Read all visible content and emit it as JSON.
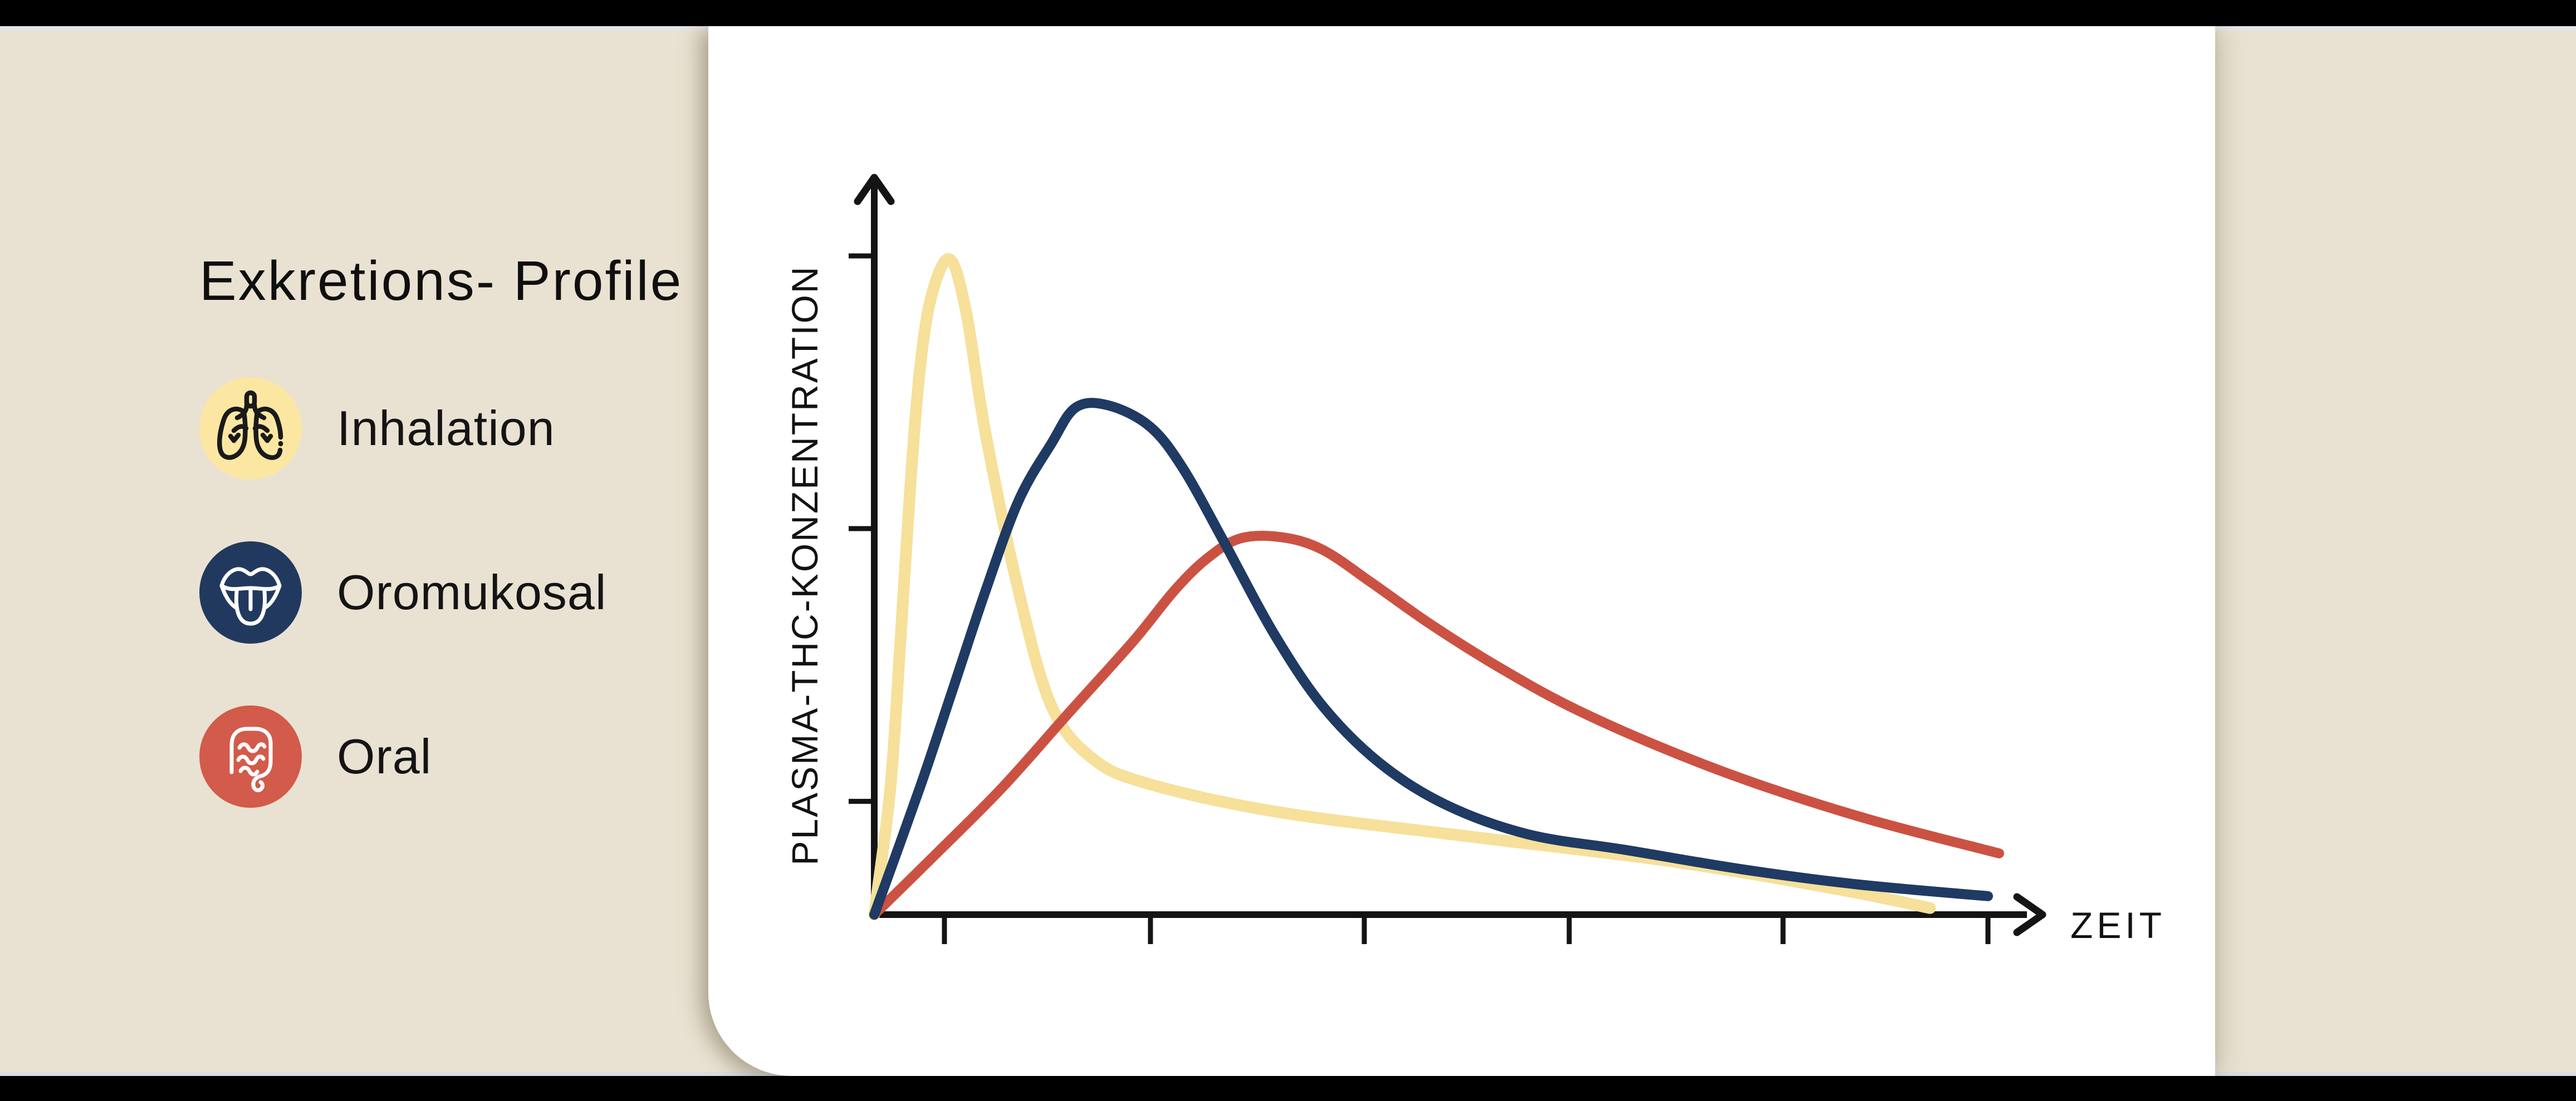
{
  "left_panel": {
    "title": "Exkretions- Profile"
  },
  "legend": {
    "items": [
      {
        "label": "Inhalation",
        "icon": "lungs-icon",
        "color": "#fce7a2",
        "icon_color": "#1a1a1a"
      },
      {
        "label": "Oromukosal",
        "icon": "tongue-icon",
        "color": "#21395e",
        "icon_color": "#ffffff"
      },
      {
        "label": "Oral",
        "icon": "intestines-icon",
        "color": "#d25b4b",
        "icon_color": "#ffffff"
      }
    ]
  },
  "chart_data": {
    "type": "line",
    "title": "",
    "xlabel": "ZEIT",
    "ylabel": "PLASMA-THC-KONZENTRATION",
    "units": "relative (axes are unlabeled, values 0-100 of plot range)",
    "grid": false,
    "legend_position": "outside-left",
    "x_axis": {
      "range": [
        0,
        104
      ],
      "ticks": [
        6.3,
        24.8,
        44.0,
        62.4,
        81.6,
        100
      ],
      "arrow": true,
      "numeric_labels": false
    },
    "y_axis": {
      "range": [
        0,
        110
      ],
      "ticks": [
        100,
        58.6,
        17.2
      ],
      "arrow": true,
      "numeric_labels": false
    },
    "series": [
      {
        "name": "Inhalation",
        "color": "#f6e09a",
        "stroke_width": 21,
        "points": [
          [
            0,
            0
          ],
          [
            1.45,
            19.3
          ],
          [
            2.35,
            41.6
          ],
          [
            3.2,
            64.1
          ],
          [
            4.1,
            82.8
          ],
          [
            5.15,
            94.0
          ],
          [
            6.75,
            99.5
          ],
          [
            8.25,
            91.5
          ],
          [
            10.0,
            73.0
          ],
          [
            12.95,
            49.2
          ],
          [
            15.9,
            31.7
          ],
          [
            19.6,
            23.7
          ],
          [
            24.75,
            19.8
          ],
          [
            36.55,
            15.5
          ],
          [
            54.25,
            11.7
          ],
          [
            71.95,
            8.0
          ],
          [
            86.7,
            3.8
          ],
          [
            94.8,
            1.0
          ]
        ]
      },
      {
        "name": "Oromukosal",
        "color": "#1f3a63",
        "stroke_width": 18,
        "points": [
          [
            0,
            0
          ],
          [
            4.1,
            19.3
          ],
          [
            7.05,
            34.2
          ],
          [
            10.0,
            49.2
          ],
          [
            12.95,
            62.8
          ],
          [
            15.9,
            71.5
          ],
          [
            18.1,
            77.0
          ],
          [
            21.05,
            77.3
          ],
          [
            24.75,
            74.1
          ],
          [
            27.7,
            67.8
          ],
          [
            31.4,
            56.6
          ],
          [
            35.8,
            42.9
          ],
          [
            40.25,
            31.7
          ],
          [
            45.4,
            23.0
          ],
          [
            51.3,
            16.7
          ],
          [
            58.7,
            12.2
          ],
          [
            67.55,
            9.8
          ],
          [
            77.85,
            6.9
          ],
          [
            88.2,
            4.6
          ],
          [
            100,
            2.8
          ]
        ]
      },
      {
        "name": "Oral",
        "color": "#cb5243",
        "stroke_width": 18,
        "points": [
          [
            0,
            0
          ],
          [
            5.6,
            9.3
          ],
          [
            11.5,
            19.3
          ],
          [
            17.4,
            30.5
          ],
          [
            23.3,
            41.6
          ],
          [
            26.95,
            49.2
          ],
          [
            29.9,
            54.1
          ],
          [
            32.85,
            57.1
          ],
          [
            36.55,
            57.3
          ],
          [
            40.25,
            55.4
          ],
          [
            44.65,
            50.4
          ],
          [
            49.85,
            44.2
          ],
          [
            55.75,
            37.9
          ],
          [
            62.35,
            31.7
          ],
          [
            70.5,
            25.5
          ],
          [
            79.35,
            19.8
          ],
          [
            89.65,
            14.3
          ],
          [
            101,
            9.3
          ]
        ]
      }
    ]
  },
  "colors": {
    "background": "#e9e2d2",
    "card": "#ffffff",
    "letterbox_bar": "#000000",
    "top_edge_strip": "#e6e5e9",
    "bottom_edge_strip": "#dcdde1",
    "axis": "#141414",
    "text": "#121212"
  }
}
